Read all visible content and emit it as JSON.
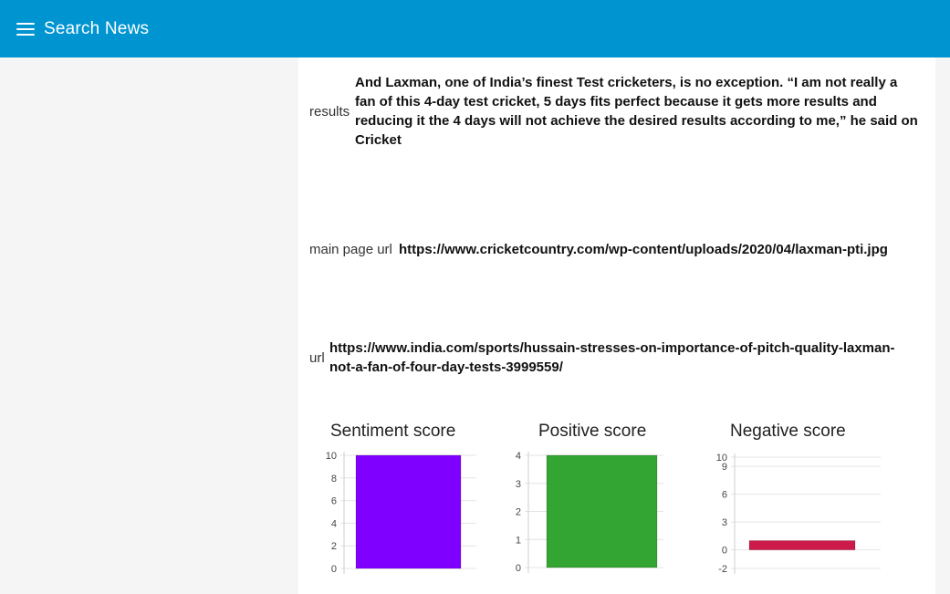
{
  "appbar": {
    "title": "Search News",
    "menu_icon": "menu-icon"
  },
  "fields": {
    "results": {
      "label": "results",
      "value": "And Laxman, one of India’s finest Test cricketers, is no exception. “I am not really a fan of this 4-day test cricket, 5 days fits perfect because it gets more results and reducing it the 4 days will not achieve the desired results according to me,” he said on Cricket"
    },
    "main_page_url": {
      "label": "main page url",
      "value": "https://www.cricketcountry.com/wp-content/uploads/2020/04/laxman-pti.jpg"
    },
    "url": {
      "label": "url",
      "value": "https://www.india.com/sports/hussain-stresses-on-importance-of-pitch-quality-laxman-not-a-fan-of-four-day-tests-3999559/"
    }
  },
  "chart_data": [
    {
      "type": "bar",
      "title": "Sentiment score",
      "categories": [
        ""
      ],
      "values": [
        10
      ],
      "yticks": [
        0,
        2,
        4,
        6,
        8,
        10
      ],
      "ylim": [
        0,
        10
      ],
      "color": "#8000ff",
      "grid": true
    },
    {
      "type": "bar",
      "title": "Positive score",
      "categories": [
        ""
      ],
      "values": [
        4
      ],
      "yticks": [
        0,
        1,
        2,
        3,
        4
      ],
      "ylim": [
        0,
        4
      ],
      "color": "#33a532",
      "grid": true
    },
    {
      "type": "bar",
      "title": "Negative score",
      "categories": [
        ""
      ],
      "values": [
        1
      ],
      "yticks": [
        -2,
        0,
        3,
        6,
        9,
        10
      ],
      "ylim": [
        -2,
        10
      ],
      "color": "#cc1a4a",
      "grid": true
    }
  ]
}
